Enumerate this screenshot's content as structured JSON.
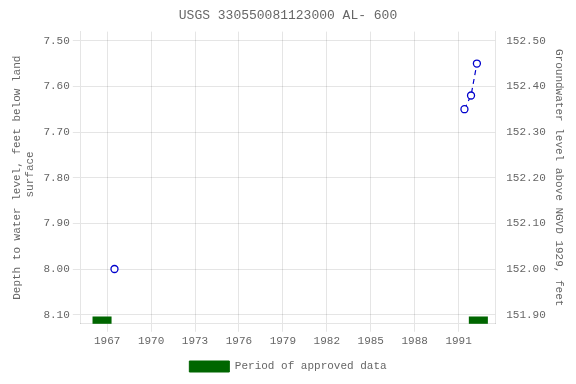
{
  "chart_data": {
    "type": "scatter",
    "title": "USGS 330550081123000 AL- 600",
    "ylabel": "Depth to water level, feet below land\n surface",
    "y2label": "Groundwater level above NGVD 1929, feet",
    "x": [
      1967.5,
      1991.4,
      1991.85,
      1992.25
    ],
    "series": [
      {
        "color": "#0000cc",
        "marker": "circle",
        "line_style": "none",
        "values": [
          8.0,
          null,
          null,
          null
        ]
      },
      {
        "color": "#0000cc",
        "marker": "circle",
        "line_style": "dashed",
        "values": [
          null,
          7.65,
          7.62,
          7.55
        ]
      }
    ],
    "periods": {
      "name": "Period of approved data",
      "color": "#006600",
      "ranges": [
        [
          1966.0,
          1967.3
        ],
        [
          1991.7,
          1993.0
        ]
      ]
    },
    "xlim": [
      1965.2,
      1993.5
    ],
    "xticks": [
      1967,
      1970,
      1973,
      1976,
      1979,
      1982,
      1985,
      1988,
      1991
    ],
    "ylim": [
      8.12,
      7.48
    ],
    "yticks": [
      {
        "value": 7.5,
        "label": "7.50"
      },
      {
        "value": 7.6,
        "label": "7.60"
      },
      {
        "value": 7.7,
        "label": "7.70"
      },
      {
        "value": 7.8,
        "label": "7.80"
      },
      {
        "value": 7.9,
        "label": "7.90"
      },
      {
        "value": 8.0,
        "label": "8.00"
      },
      {
        "value": 8.1,
        "label": "8.10"
      }
    ],
    "y2lim": [
      151.88,
      152.52
    ],
    "y2ticks": [
      {
        "value": 151.9,
        "label": "151.90"
      },
      {
        "value": 152.0,
        "label": "152.00"
      },
      {
        "value": 152.1,
        "label": "152.10"
      },
      {
        "value": 152.2,
        "label": "152.20"
      },
      {
        "value": 152.3,
        "label": "152.30"
      },
      {
        "value": 152.4,
        "label": "152.40"
      },
      {
        "value": 152.5,
        "label": "152.50"
      }
    ],
    "grid": true,
    "legend": "bottom"
  }
}
